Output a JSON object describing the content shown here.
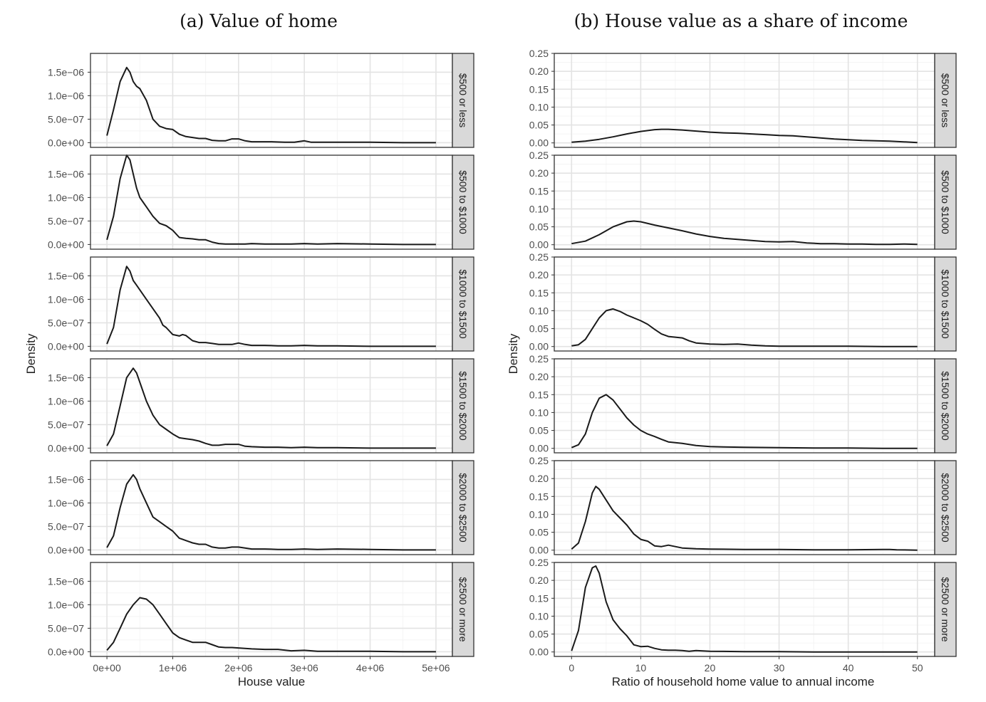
{
  "colors": {
    "line": "#1a1a1a",
    "strip": "#d9d9d9",
    "grid": "#e3e3e3"
  },
  "chart_data": [
    {
      "type": "line",
      "title": "(a) Value of home",
      "xlabel": "House value",
      "ylabel": "Density",
      "xlim": [
        -250000,
        5250000
      ],
      "ylim": [
        -1e-07,
        1.9e-06
      ],
      "x_ticks": [
        0,
        1000000,
        2000000,
        3000000,
        4000000,
        5000000
      ],
      "x_tick_labels": [
        "0e+00",
        "1e+06",
        "2e+06",
        "3e+06",
        "4e+06",
        "5e+06"
      ],
      "y_ticks": [
        0,
        5e-07,
        1e-06,
        1.5e-06
      ],
      "y_tick_labels": [
        "0.0e+00",
        "5.0e−07",
        "1.0e−06",
        "1.5e−06"
      ],
      "facets": [
        {
          "label": "$500 or less",
          "x": [
            0,
            100000,
            200000,
            300000,
            350000,
            400000,
            450000,
            500000,
            600000,
            700000,
            800000,
            900000,
            1000000,
            1100000,
            1200000,
            1300000,
            1400000,
            1500000,
            1600000,
            1700000,
            1800000,
            1900000,
            2000000,
            2100000,
            2200000,
            2300000,
            2500000,
            2700000,
            2850000,
            3000000,
            3100000,
            3200000,
            3500000,
            4000000,
            4500000,
            5000000
          ],
          "y": [
            1.5e-07,
            7e-07,
            1.3e-06,
            1.6e-06,
            1.5e-06,
            1.3e-06,
            1.2e-06,
            1.15e-06,
            9e-07,
            5e-07,
            3.5e-07,
            3e-07,
            2.8e-07,
            1.8e-07,
            1.3e-07,
            1.1e-07,
            9e-08,
            9e-08,
            5e-08,
            4e-08,
            4e-08,
            8e-08,
            8e-08,
            4e-08,
            2e-08,
            2e-08,
            2e-08,
            1e-08,
            1e-08,
            4e-08,
            1e-08,
            1e-08,
            1e-08,
            1e-08,
            0,
            0
          ]
        },
        {
          "label": "$500 to $1000",
          "x": [
            0,
            100000,
            200000,
            300000,
            350000,
            400000,
            450000,
            500000,
            550000,
            600000,
            700000,
            800000,
            900000,
            1000000,
            1100000,
            1200000,
            1300000,
            1400000,
            1500000,
            1600000,
            1700000,
            1800000,
            1900000,
            2000000,
            2100000,
            2200000,
            2400000,
            2600000,
            2800000,
            3000000,
            3200000,
            3500000,
            4000000,
            4500000,
            5000000
          ],
          "y": [
            1e-07,
            6e-07,
            1.4e-06,
            1.9e-06,
            1.8e-06,
            1.5e-06,
            1.2e-06,
            1e-06,
            9e-07,
            8e-07,
            6e-07,
            4.5e-07,
            4e-07,
            3e-07,
            1.5e-07,
            1.3e-07,
            1.2e-07,
            1e-07,
            1e-07,
            5e-08,
            2e-08,
            1e-08,
            1e-08,
            1e-08,
            1e-08,
            2e-08,
            1e-08,
            1e-08,
            1e-08,
            2e-08,
            1e-08,
            2e-08,
            1e-08,
            0,
            0
          ]
        },
        {
          "label": "$1000 to $1500",
          "x": [
            0,
            100000,
            200000,
            300000,
            350000,
            400000,
            450000,
            500000,
            600000,
            700000,
            800000,
            850000,
            900000,
            1000000,
            1100000,
            1150000,
            1200000,
            1300000,
            1400000,
            1500000,
            1600000,
            1700000,
            1800000,
            1900000,
            2000000,
            2100000,
            2200000,
            2400000,
            2600000,
            2800000,
            3000000,
            3200000,
            3500000,
            4000000,
            4500000,
            5000000
          ],
          "y": [
            5e-08,
            4e-07,
            1.2e-06,
            1.7e-06,
            1.6e-06,
            1.4e-06,
            1.3e-06,
            1.2e-06,
            1e-06,
            8e-07,
            6e-07,
            4.5e-07,
            4e-07,
            2.5e-07,
            2.2e-07,
            2.5e-07,
            2.3e-07,
            1.2e-07,
            8e-08,
            8e-08,
            6e-08,
            4e-08,
            4e-08,
            4e-08,
            7e-08,
            4e-08,
            2e-08,
            2e-08,
            1e-08,
            1e-08,
            2e-08,
            1e-08,
            1e-08,
            0,
            0,
            0
          ]
        },
        {
          "label": "$1500 to $2000",
          "x": [
            0,
            100000,
            200000,
            300000,
            400000,
            450000,
            500000,
            600000,
            700000,
            800000,
            900000,
            1000000,
            1100000,
            1200000,
            1300000,
            1400000,
            1500000,
            1600000,
            1700000,
            1800000,
            1900000,
            2000000,
            2100000,
            2200000,
            2400000,
            2600000,
            2800000,
            3000000,
            3200000,
            3500000,
            4000000,
            4500000,
            5000000
          ],
          "y": [
            5e-08,
            3e-07,
            9e-07,
            1.5e-06,
            1.7e-06,
            1.6e-06,
            1.4e-06,
            1e-06,
            7e-07,
            5e-07,
            4e-07,
            3e-07,
            2.2e-07,
            2e-07,
            1.8e-07,
            1.5e-07,
            1e-07,
            6e-08,
            6e-08,
            8e-08,
            8e-08,
            8e-08,
            4e-08,
            3e-08,
            2e-08,
            2e-08,
            1e-08,
            2e-08,
            1e-08,
            1e-08,
            0,
            0,
            0
          ]
        },
        {
          "label": "$2000 to $2500",
          "x": [
            0,
            100000,
            200000,
            300000,
            400000,
            450000,
            500000,
            600000,
            700000,
            800000,
            900000,
            1000000,
            1100000,
            1200000,
            1300000,
            1400000,
            1500000,
            1600000,
            1700000,
            1800000,
            1900000,
            2000000,
            2100000,
            2200000,
            2400000,
            2600000,
            2800000,
            3000000,
            3200000,
            3500000,
            4000000,
            4500000,
            5000000
          ],
          "y": [
            5e-08,
            3e-07,
            9e-07,
            1.4e-06,
            1.6e-06,
            1.5e-06,
            1.3e-06,
            1e-06,
            7e-07,
            6e-07,
            5e-07,
            4e-07,
            2.5e-07,
            2e-07,
            1.5e-07,
            1.2e-07,
            1.2e-07,
            6e-08,
            4e-08,
            4e-08,
            6e-08,
            6e-08,
            4e-08,
            2e-08,
            2e-08,
            1e-08,
            1e-08,
            2e-08,
            1e-08,
            2e-08,
            1e-08,
            0,
            0
          ]
        },
        {
          "label": "$2500 or more",
          "x": [
            0,
            100000,
            200000,
            300000,
            400000,
            500000,
            600000,
            700000,
            800000,
            900000,
            1000000,
            1100000,
            1200000,
            1300000,
            1400000,
            1500000,
            1600000,
            1700000,
            1800000,
            1900000,
            2000000,
            2200000,
            2400000,
            2600000,
            2800000,
            3000000,
            3200000,
            3500000,
            4000000,
            4500000,
            5000000
          ],
          "y": [
            3e-08,
            2e-07,
            5e-07,
            8e-07,
            1e-06,
            1.15e-06,
            1.12e-06,
            1e-06,
            8e-07,
            6e-07,
            4e-07,
            3e-07,
            2.5e-07,
            2e-07,
            2e-07,
            2e-07,
            1.5e-07,
            1e-07,
            9e-08,
            9e-08,
            8e-08,
            6e-08,
            5e-08,
            5e-08,
            2e-08,
            3e-08,
            1e-08,
            1e-08,
            1e-08,
            0,
            0
          ]
        }
      ]
    },
    {
      "type": "line",
      "title": "(b) House value as a share of income",
      "xlabel": "Ratio of household home value to annual income",
      "ylabel": "Density",
      "xlim": [
        -2.5,
        52.5
      ],
      "ylim": [
        -0.0125,
        0.25
      ],
      "x_ticks": [
        0,
        10,
        20,
        30,
        40,
        50
      ],
      "x_tick_labels": [
        "0",
        "10",
        "20",
        "30",
        "40",
        "50"
      ],
      "y_ticks": [
        0,
        0.05,
        0.1,
        0.15,
        0.2,
        0.25
      ],
      "y_tick_labels": [
        "0.00",
        "0.05",
        "0.10",
        "0.15",
        "0.20",
        "0.25"
      ],
      "facets": [
        {
          "label": "$500 or less",
          "x": [
            0,
            2,
            4,
            6,
            8,
            10,
            12,
            13,
            14,
            16,
            18,
            20,
            22,
            24,
            26,
            28,
            30,
            32,
            34,
            36,
            38,
            40,
            42,
            44,
            46,
            48,
            50
          ],
          "y": [
            0.002,
            0.005,
            0.01,
            0.017,
            0.025,
            0.032,
            0.037,
            0.038,
            0.038,
            0.036,
            0.033,
            0.03,
            0.028,
            0.027,
            0.025,
            0.023,
            0.021,
            0.02,
            0.017,
            0.014,
            0.011,
            0.009,
            0.007,
            0.006,
            0.005,
            0.003,
            0.001
          ]
        },
        {
          "label": "$500 to $1000",
          "x": [
            0,
            2,
            4,
            6,
            8,
            9,
            10,
            12,
            14,
            16,
            18,
            20,
            22,
            24,
            26,
            28,
            30,
            32,
            34,
            36,
            38,
            40,
            42,
            44,
            46,
            48,
            50
          ],
          "y": [
            0.003,
            0.01,
            0.028,
            0.05,
            0.064,
            0.066,
            0.064,
            0.055,
            0.047,
            0.039,
            0.03,
            0.023,
            0.018,
            0.015,
            0.012,
            0.009,
            0.008,
            0.009,
            0.005,
            0.003,
            0.003,
            0.002,
            0.002,
            0.001,
            0.001,
            0.002,
            0.001
          ]
        },
        {
          "label": "$1000 to $1500",
          "x": [
            0,
            1,
            2,
            3,
            4,
            5,
            6,
            7,
            8,
            9,
            10,
            11,
            12,
            13,
            14,
            15,
            16,
            17,
            18,
            20,
            22,
            24,
            26,
            28,
            30,
            35,
            40,
            45,
            50
          ],
          "y": [
            0.002,
            0.005,
            0.02,
            0.05,
            0.08,
            0.1,
            0.105,
            0.098,
            0.088,
            0.08,
            0.072,
            0.062,
            0.048,
            0.035,
            0.028,
            0.026,
            0.024,
            0.016,
            0.01,
            0.007,
            0.006,
            0.007,
            0.004,
            0.002,
            0.001,
            0.001,
            0.001,
            0,
            0
          ]
        },
        {
          "label": "$1500 to $2000",
          "x": [
            0,
            1,
            2,
            3,
            4,
            5,
            6,
            7,
            8,
            9,
            10,
            11,
            12,
            13,
            14,
            15,
            16,
            18,
            20,
            22,
            25,
            30,
            35,
            40,
            45,
            50
          ],
          "y": [
            0.002,
            0.01,
            0.04,
            0.1,
            0.14,
            0.15,
            0.135,
            0.11,
            0.085,
            0.065,
            0.05,
            0.04,
            0.033,
            0.025,
            0.018,
            0.016,
            0.014,
            0.008,
            0.005,
            0.004,
            0.003,
            0.002,
            0.001,
            0.001,
            0,
            0
          ]
        },
        {
          "label": "$2000 to $2500",
          "x": [
            0,
            1,
            2,
            3,
            3.5,
            4,
            5,
            6,
            7,
            8,
            9,
            10,
            11,
            12,
            13,
            14,
            15,
            16,
            18,
            20,
            25,
            30,
            35,
            40,
            45,
            46,
            47,
            50
          ],
          "y": [
            0.003,
            0.02,
            0.08,
            0.16,
            0.178,
            0.17,
            0.14,
            0.11,
            0.09,
            0.07,
            0.045,
            0.03,
            0.025,
            0.012,
            0.01,
            0.014,
            0.01,
            0.006,
            0.004,
            0.003,
            0.002,
            0.002,
            0.001,
            0.001,
            0.002,
            0.002,
            0.001,
            0
          ]
        },
        {
          "label": "$2500 or more",
          "x": [
            0,
            1,
            2,
            3,
            3.5,
            4,
            5,
            6,
            7,
            8,
            9,
            10,
            11,
            12,
            13,
            14,
            15,
            16,
            17,
            18,
            20,
            25,
            30,
            35,
            40,
            45,
            50
          ],
          "y": [
            0.003,
            0.06,
            0.18,
            0.235,
            0.24,
            0.22,
            0.14,
            0.09,
            0.065,
            0.045,
            0.02,
            0.015,
            0.016,
            0.01,
            0.006,
            0.005,
            0.005,
            0.004,
            0.002,
            0.004,
            0.002,
            0.001,
            0.001,
            0,
            0,
            0,
            0
          ]
        }
      ]
    }
  ]
}
